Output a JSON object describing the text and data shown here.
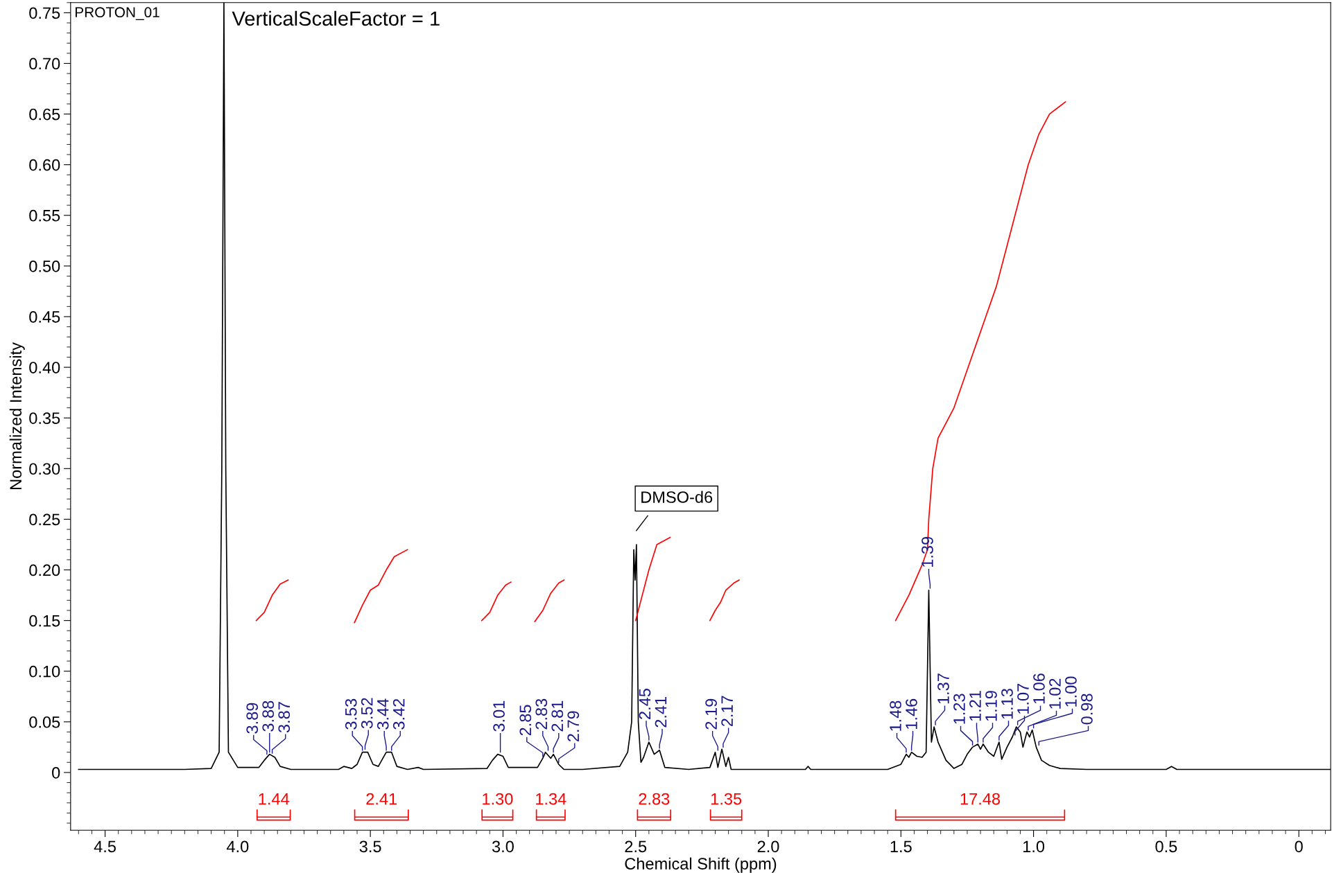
{
  "chart_data": {
    "type": "line",
    "xlabel": "Chemical Shift (ppm)",
    "ylabel": "Normalized Intensity",
    "xlim": [
      4.63,
      -0.12
    ],
    "ylim": [
      -0.057,
      0.76
    ],
    "xticks": [
      4.5,
      {
        "value": 4.0,
        "label": "4.0"
      },
      3.5,
      {
        "value": 3.0,
        "label": "3.0"
      },
      2.5,
      {
        "value": 2.0,
        "label": "2.0"
      },
      1.5,
      {
        "value": 1.0,
        "label": "1.0"
      },
      0.5,
      0
    ],
    "yticks": [
      0,
      0.05,
      {
        "value": 0.1,
        "label": "0.10"
      },
      0.15,
      {
        "value": 0.2,
        "label": "0.20"
      },
      0.25,
      {
        "value": 0.3,
        "label": "0.30"
      },
      0.35,
      {
        "value": 0.4,
        "label": "0.40"
      },
      0.45,
      {
        "value": 0.5,
        "label": "0.50"
      },
      0.55,
      {
        "value": 0.6,
        "label": "0.60"
      },
      0.65,
      {
        "value": 0.7,
        "label": "0.70"
      },
      0.75
    ],
    "grid": false,
    "marker": "none",
    "line_style": "solid",
    "series": [
      {
        "color": "#000000",
        "x": [
          4.6,
          4.2,
          4.1,
          4.07,
          4.06,
          4.052,
          4.045,
          4.035,
          4.0,
          3.92,
          3.9,
          3.88,
          3.86,
          3.84,
          3.8,
          3.62,
          3.6,
          3.57,
          3.55,
          3.53,
          3.51,
          3.49,
          3.47,
          3.44,
          3.42,
          3.4,
          3.36,
          3.32,
          3.3,
          3.06,
          3.04,
          3.02,
          3.0,
          2.98,
          2.87,
          2.85,
          2.84,
          2.82,
          2.81,
          2.79,
          2.77,
          2.7,
          2.56,
          2.53,
          2.515,
          2.507,
          2.502,
          2.497,
          2.49,
          2.48,
          2.47,
          2.45,
          2.43,
          2.41,
          2.39,
          2.3,
          2.22,
          2.2,
          2.19,
          2.175,
          2.16,
          2.15,
          2.14,
          1.86,
          1.85,
          1.84,
          1.55,
          1.5,
          1.48,
          1.47,
          1.46,
          1.44,
          1.42,
          1.405,
          1.395,
          1.385,
          1.375,
          1.36,
          1.33,
          1.3,
          1.27,
          1.25,
          1.23,
          1.21,
          1.2,
          1.19,
          1.17,
          1.15,
          1.13,
          1.12,
          1.1,
          1.08,
          1.065,
          1.05,
          1.04,
          1.025,
          1.015,
          1.005,
          0.99,
          0.97,
          0.94,
          0.9,
          0.8,
          0.5,
          0.48,
          0.46,
          -0.12
        ],
        "values": [
          0.003,
          0.003,
          0.004,
          0.02,
          0.3,
          0.76,
          0.3,
          0.02,
          0.005,
          0.005,
          0.012,
          0.018,
          0.015,
          0.006,
          0.003,
          0.003,
          0.006,
          0.004,
          0.008,
          0.02,
          0.02,
          0.008,
          0.006,
          0.02,
          0.02,
          0.006,
          0.003,
          0.005,
          0.003,
          0.004,
          0.012,
          0.018,
          0.016,
          0.005,
          0.005,
          0.014,
          0.02,
          0.014,
          0.018,
          0.008,
          0.003,
          0.003,
          0.006,
          0.02,
          0.05,
          0.22,
          0.19,
          0.225,
          0.05,
          0.01,
          0.015,
          0.03,
          0.018,
          0.022,
          0.005,
          0.003,
          0.005,
          0.02,
          0.005,
          0.023,
          0.006,
          0.015,
          0.003,
          0.003,
          0.006,
          0.003,
          0.003,
          0.008,
          0.018,
          0.015,
          0.02,
          0.016,
          0.015,
          0.02,
          0.18,
          0.03,
          0.045,
          0.03,
          0.012,
          0.004,
          0.008,
          0.018,
          0.025,
          0.028,
          0.023,
          0.028,
          0.02,
          0.016,
          0.03,
          0.013,
          0.025,
          0.035,
          0.045,
          0.04,
          0.025,
          0.04,
          0.035,
          0.042,
          0.025,
          0.012,
          0.007,
          0.004,
          0.003,
          0.003,
          0.006,
          0.003,
          0.003
        ]
      },
      {
        "color": "#ff0000",
        "x": [
          3.93,
          3.9,
          3.87,
          3.84,
          3.81
        ],
        "values": [
          0.15,
          0.158,
          0.175,
          0.186,
          0.19
        ]
      },
      {
        "color": "#ff0000",
        "x": [
          3.56,
          3.53,
          3.5,
          3.47,
          3.44,
          3.41,
          3.36
        ],
        "values": [
          0.148,
          0.165,
          0.18,
          0.185,
          0.2,
          0.213,
          0.22
        ]
      },
      {
        "color": "#ff0000",
        "x": [
          3.08,
          3.05,
          3.02,
          2.99,
          2.97
        ],
        "values": [
          0.15,
          0.158,
          0.175,
          0.185,
          0.188
        ]
      },
      {
        "color": "#ff0000",
        "x": [
          2.88,
          2.85,
          2.82,
          2.79,
          2.77
        ],
        "values": [
          0.149,
          0.16,
          0.177,
          0.187,
          0.19
        ]
      },
      {
        "color": "#ff0000",
        "x": [
          2.5,
          2.48,
          2.45,
          2.42,
          2.37
        ],
        "values": [
          0.15,
          0.17,
          0.2,
          0.225,
          0.232
        ]
      },
      {
        "color": "#ff0000",
        "x": [
          2.22,
          2.2,
          2.18,
          2.16,
          2.13,
          2.11
        ],
        "values": [
          0.15,
          0.16,
          0.168,
          0.18,
          0.187,
          0.19
        ]
      },
      {
        "color": "#ff0000",
        "x": [
          1.52,
          1.47,
          1.42,
          1.4,
          1.395,
          1.38,
          1.36,
          1.33,
          1.3,
          1.26,
          1.22,
          1.18,
          1.14,
          1.1,
          1.06,
          1.02,
          0.98,
          0.94,
          0.88
        ],
        "values": [
          0.15,
          0.175,
          0.205,
          0.22,
          0.25,
          0.3,
          0.33,
          0.345,
          0.36,
          0.39,
          0.42,
          0.45,
          0.48,
          0.52,
          0.56,
          0.6,
          0.63,
          0.65,
          0.662
        ]
      },
      {
        "name": "1.44",
        "color": "#ff0000",
        "x": [
          3.927,
          3.927,
          3.802,
          3.802,
          3.802,
          3.927
        ],
        "values": [
          -0.037,
          -0.047,
          -0.047,
          -0.037,
          -0.044,
          -0.044
        ]
      },
      {
        "name": "2.41",
        "color": "#ff0000",
        "x": [
          3.559,
          3.559,
          3.357,
          3.357,
          3.357,
          3.559
        ],
        "values": [
          -0.037,
          -0.047,
          -0.047,
          -0.037,
          -0.044,
          -0.044
        ]
      },
      {
        "name": "1.30",
        "color": "#ff0000",
        "x": [
          3.079,
          3.079,
          2.963,
          2.963,
          2.963,
          3.079
        ],
        "values": [
          -0.037,
          -0.047,
          -0.047,
          -0.037,
          -0.044,
          -0.044
        ]
      },
      {
        "name": "1.34",
        "color": "#ff0000",
        "x": [
          2.874,
          2.874,
          2.766,
          2.766,
          2.766,
          2.874
        ],
        "values": [
          -0.037,
          -0.047,
          -0.047,
          -0.037,
          -0.044,
          -0.044
        ]
      },
      {
        "name": "2.83",
        "color": "#ff0000",
        "x": [
          2.493,
          2.493,
          2.368,
          2.368,
          2.368,
          2.493
        ],
        "values": [
          -0.037,
          -0.047,
          -0.047,
          -0.037,
          -0.044,
          -0.044
        ]
      },
      {
        "name": "1.35",
        "color": "#ff0000",
        "x": [
          2.218,
          2.218,
          2.1,
          2.1,
          2.1,
          2.218
        ],
        "values": [
          -0.037,
          -0.047,
          -0.047,
          -0.037,
          -0.044,
          -0.044
        ]
      },
      {
        "name": "17.48",
        "color": "#ff0000",
        "x": [
          1.52,
          1.52,
          0.883,
          0.883,
          0.883,
          1.52
        ],
        "values": [
          -0.037,
          -0.047,
          -0.047,
          -0.037,
          -0.044,
          -0.044
        ]
      }
    ],
    "annotations": [
      "PROTON_01",
      "VerticalScaleFactor = 1",
      "DMSO-d6",
      {
        "text": "3.89",
        "x": 3.89,
        "y": 0.016
      },
      {
        "text": "3.88",
        "x": 3.88,
        "y": 0.018
      },
      {
        "text": "3.87",
        "x": 3.87,
        "y": 0.017
      },
      {
        "text": "3.53",
        "x": 3.53,
        "y": 0.02
      },
      {
        "text": "3.52",
        "x": 3.52,
        "y": 0.021
      },
      {
        "text": "3.44",
        "x": 3.44,
        "y": 0.02
      },
      {
        "text": "3.42",
        "x": 3.42,
        "y": 0.02
      },
      {
        "text": "3.01",
        "x": 3.01,
        "y": 0.018
      },
      {
        "text": "2.85",
        "x": 2.85,
        "y": 0.014
      },
      {
        "text": "2.83",
        "x": 2.83,
        "y": 0.02
      },
      {
        "text": "2.81",
        "x": 2.81,
        "y": 0.018
      },
      {
        "text": "2.79",
        "x": 2.79,
        "y": 0.008
      },
      {
        "text": "2.45",
        "x": 2.45,
        "y": 0.03
      },
      {
        "text": "2.41",
        "x": 2.41,
        "y": 0.022
      },
      {
        "text": "2.19",
        "x": 2.19,
        "y": 0.02
      },
      {
        "text": "2.17",
        "x": 2.17,
        "y": 0.023
      },
      {
        "text": "1.48",
        "x": 1.48,
        "y": 0.018
      },
      {
        "text": "1.46",
        "x": 1.46,
        "y": 0.02
      },
      {
        "text": "1.39",
        "x": 1.39,
        "y": 0.18
      },
      {
        "text": "1.37",
        "x": 1.37,
        "y": 0.045
      },
      {
        "text": "1.23",
        "x": 1.23,
        "y": 0.025
      },
      {
        "text": "1.21",
        "x": 1.21,
        "y": 0.028
      },
      {
        "text": "1.19",
        "x": 1.19,
        "y": 0.028
      },
      {
        "text": "1.13",
        "x": 1.13,
        "y": 0.03
      },
      {
        "text": "1.07",
        "x": 1.07,
        "y": 0.035
      },
      {
        "text": "1.06",
        "x": 1.06,
        "y": 0.045
      },
      {
        "text": "1.02",
        "x": 1.02,
        "y": 0.04
      },
      {
        "text": "1.00",
        "x": 1.0,
        "y": 0.042
      },
      {
        "text": "0.98",
        "x": 0.98,
        "y": 0.025
      }
    ]
  }
}
